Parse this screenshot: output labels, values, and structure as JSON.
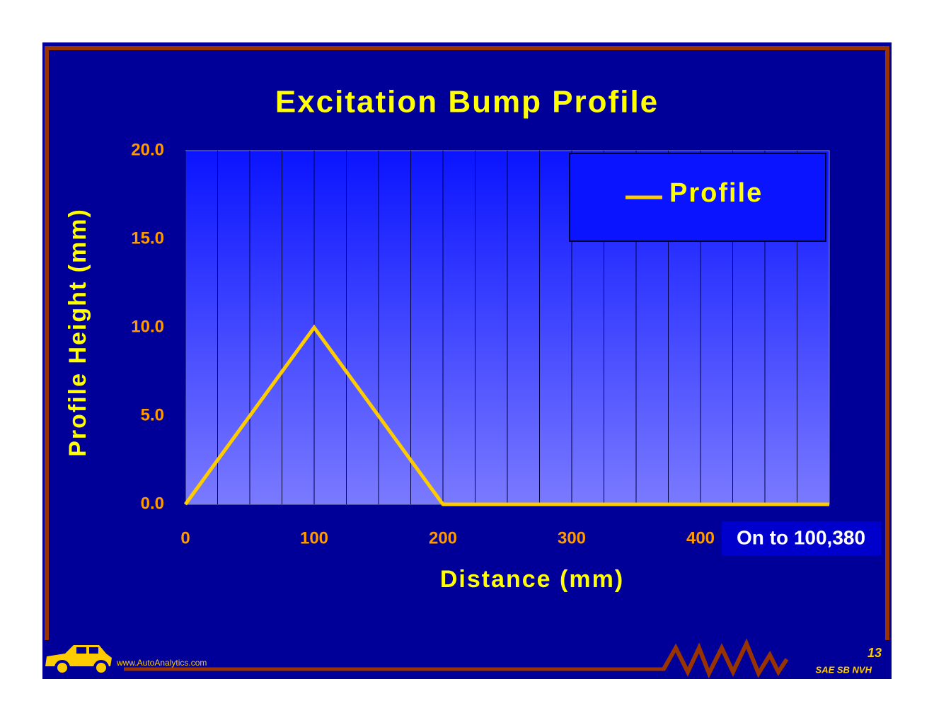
{
  "chart_data": {
    "type": "line",
    "title": "Excitation Bump Profile",
    "x_label": "Distance  (mm)",
    "y_label": "Profile Height  (mm)",
    "x": [
      0,
      100,
      200,
      500
    ],
    "series": [
      {
        "name": "Profile",
        "color": "#ffcc00",
        "values": [
          0,
          10,
          0,
          0
        ]
      }
    ],
    "xlim": [
      0,
      500
    ],
    "xticks": [
      0,
      100,
      200,
      300,
      400
    ],
    "ylim": [
      0,
      20
    ],
    "yticks": [
      {
        "value": 0,
        "label": "0.0"
      },
      {
        "value": 5,
        "label": "5.0"
      },
      {
        "value": 10,
        "label": "10.0"
      },
      {
        "value": 15,
        "label": "15.0"
      },
      {
        "value": 20,
        "label": "20.0"
      }
    ],
    "grid": true,
    "legend": "upper right",
    "annotation": "On to 100,380"
  },
  "footer": {
    "website": "www.AutoAnalytics.com",
    "page": "13",
    "source": "SAE SB NVH"
  }
}
